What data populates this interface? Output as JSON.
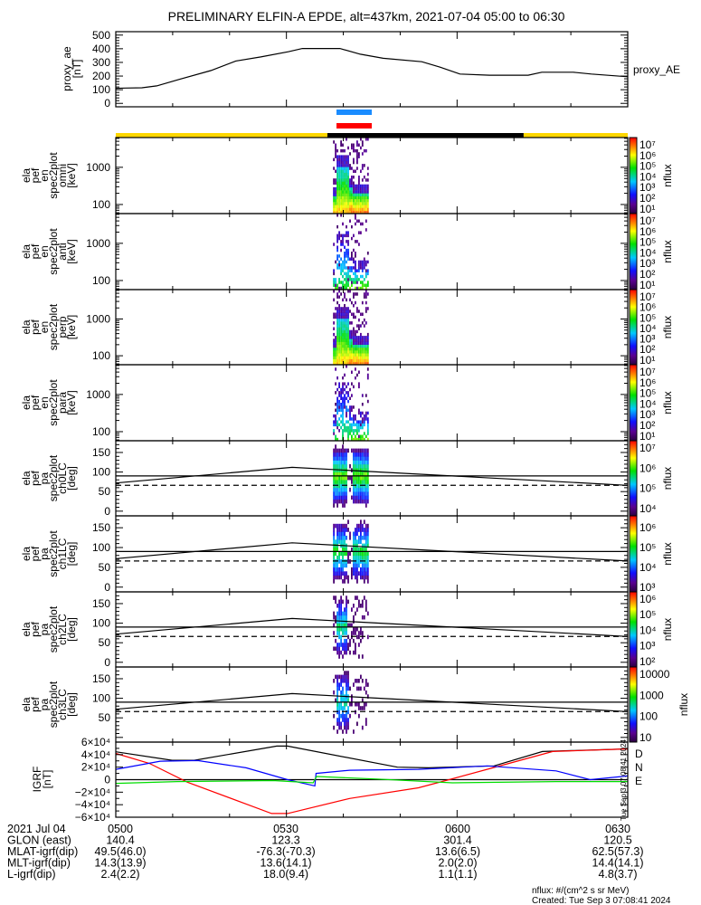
{
  "title": "PRELIMINARY ELFIN-A EPDE, alt=437km, 2021-07-04 05:00 to 06:30",
  "colors": {
    "axis": "#000000",
    "blue_bar": "#1a8cff",
    "red_bar": "#ff0000",
    "sunlight": "#ffd700",
    "shadow": "#000000",
    "D": "#ff0000",
    "N": "#0000ff",
    "E": "#00dd00",
    "total": "#000000"
  },
  "time_axis": {
    "xlim_minutes_after_0500": [
      0,
      90
    ],
    "major_every_min": 30,
    "minor_every_min": 10
  },
  "status_bars": {
    "blue_interval": [
      38.8,
      45.0
    ],
    "red_interval": [
      38.8,
      45.0
    ],
    "sun_segments": [
      {
        "from": 0,
        "to": 37.2,
        "state": "sunlight"
      },
      {
        "from": 37.2,
        "to": 71.7,
        "state": "shadow"
      },
      {
        "from": 71.7,
        "to": 90,
        "state": "sunlight"
      }
    ]
  },
  "chart_data": [
    {
      "type": "line",
      "id": "proxy_ae",
      "ylabel": [
        "proxy_ae",
        "[nT]"
      ],
      "legend": "proxy_AE",
      "ylim": [
        -25,
        525
      ],
      "yticks": [
        0,
        100,
        200,
        300,
        400,
        500
      ],
      "ytick_labels": [
        "0",
        "100",
        "200",
        "300",
        "400",
        "500"
      ],
      "x": [
        0,
        1.6,
        4.6,
        7.2,
        11.1,
        16.7,
        21.1,
        25.5,
        30.3,
        32.8,
        39.4,
        43,
        47,
        53.8,
        57,
        60.5,
        65.7,
        72.5,
        74.9,
        80.4,
        83.6,
        90
      ],
      "y": [
        110,
        112,
        114,
        128,
        175,
        240,
        310,
        340,
        378,
        402,
        402,
        360,
        330,
        305,
        265,
        215,
        206,
        206,
        228,
        228,
        215,
        195
      ]
    },
    {
      "type": "heatmap",
      "id": "omni",
      "ylabel": [
        "ela",
        "pef",
        "en",
        "spec2plot",
        "omni",
        "[keV]"
      ],
      "yscale": "log",
      "ylim": [
        57,
        6300
      ],
      "yticks": [
        100,
        1000
      ],
      "ytick_labels": [
        "100",
        "1000"
      ],
      "active_interval": [
        38.2,
        44.5
      ],
      "colorbar": {
        "label": "nflux",
        "clim_log10": [
          0.5,
          7.3
        ],
        "ticks_log10": [
          7,
          6,
          5,
          4,
          3,
          2,
          1
        ],
        "tick_labels": [
          "10⁷",
          "10⁶",
          "10⁵",
          "10⁴",
          "10³",
          "10²",
          "10¹"
        ]
      }
    },
    {
      "type": "heatmap",
      "id": "anti",
      "ylabel": [
        "ela",
        "pef",
        "en",
        "spec2plot",
        "anti",
        "[keV]"
      ],
      "yscale": "log",
      "ylim": [
        57,
        6300
      ],
      "yticks": [
        100,
        1000
      ],
      "ytick_labels": [
        "100",
        "1000"
      ],
      "active_interval": [
        38.2,
        44.5
      ],
      "colorbar": {
        "label": "nflux",
        "clim_log10": [
          0.5,
          7.3
        ],
        "ticks_log10": [
          7,
          6,
          5,
          4,
          3,
          2,
          1
        ],
        "tick_labels": [
          "10⁷",
          "10⁶",
          "10⁵",
          "10⁴",
          "10³",
          "10²",
          "10¹"
        ]
      }
    },
    {
      "type": "heatmap",
      "id": "perp",
      "ylabel": [
        "ela",
        "pef",
        "en",
        "spec2plot",
        "perp",
        "[keV]"
      ],
      "yscale": "log",
      "ylim": [
        57,
        6300
      ],
      "yticks": [
        100,
        1000
      ],
      "ytick_labels": [
        "100",
        "1000"
      ],
      "active_interval": [
        38.2,
        44.5
      ],
      "colorbar": {
        "label": "nflux",
        "clim_log10": [
          0.5,
          7.3
        ],
        "ticks_log10": [
          7,
          6,
          5,
          4,
          3,
          2,
          1
        ],
        "tick_labels": [
          "10⁷",
          "10⁶",
          "10⁵",
          "10⁴",
          "10³",
          "10²",
          "10¹"
        ]
      }
    },
    {
      "type": "heatmap",
      "id": "para",
      "ylabel": [
        "ela",
        "pef",
        "en",
        "spec2plot",
        "para",
        "[keV]"
      ],
      "yscale": "log",
      "ylim": [
        57,
        6300
      ],
      "yticks": [
        100,
        1000
      ],
      "ytick_labels": [
        "100",
        "1000"
      ],
      "active_interval": [
        38.2,
        44.5
      ],
      "colorbar": {
        "label": "nflux",
        "clim_log10": [
          0.5,
          7.3
        ],
        "ticks_log10": [
          7,
          6,
          5,
          4,
          3,
          2,
          1
        ],
        "tick_labels": [
          "10⁷",
          "10⁶",
          "10⁵",
          "10⁴",
          "10³",
          "10²",
          "10¹"
        ]
      }
    },
    {
      "type": "heatmap",
      "id": "ch0LC",
      "ylabel": [
        "ela",
        "pef",
        "pa",
        "spec2plot",
        "ch0LC",
        "[deg]"
      ],
      "yscale": "linear",
      "ylim": [
        -12,
        180
      ],
      "yticks": [
        0,
        50,
        100,
        150
      ],
      "ytick_labels": [
        "0",
        "50",
        "100",
        "150"
      ],
      "active_interval": [
        38.2,
        44.5
      ],
      "reference_lines": {
        "solid_deg": 90,
        "dashed_deg": 66,
        "loss_cone": {
          "x": [
            0,
            31,
            90
          ],
          "y": [
            72,
            112,
            66
          ]
        }
      },
      "colorbar": {
        "label": "nflux",
        "clim_log10": [
          3.6,
          7.2
        ],
        "ticks_log10": [
          7,
          6,
          5,
          4
        ],
        "tick_labels": [
          "10⁷",
          "10⁶",
          "10⁵",
          "10⁴"
        ]
      }
    },
    {
      "type": "heatmap",
      "id": "ch1LC",
      "ylabel": [
        "ela",
        "pef",
        "pa",
        "spec2plot",
        "ch1LC",
        "[deg]"
      ],
      "yscale": "linear",
      "ylim": [
        -12,
        180
      ],
      "yticks": [
        0,
        50,
        100,
        150
      ],
      "ytick_labels": [
        "0",
        "50",
        "100",
        "150"
      ],
      "active_interval": [
        38.2,
        44.5
      ],
      "reference_lines": {
        "solid_deg": 90,
        "dashed_deg": 66,
        "loss_cone": {
          "x": [
            0,
            31,
            90
          ],
          "y": [
            72,
            112,
            66
          ]
        }
      },
      "colorbar": {
        "label": "nflux",
        "clim_log10": [
          2.95,
          6.5
        ],
        "ticks_log10": [
          6,
          5,
          4,
          3
        ],
        "tick_labels": [
          "10⁶",
          "10⁵",
          "10⁴",
          "10³"
        ]
      }
    },
    {
      "type": "heatmap",
      "id": "ch2LC",
      "ylabel": [
        "ela",
        "pef",
        "pa",
        "spec2plot",
        "ch2LC",
        "[deg]"
      ],
      "yscale": "linear",
      "ylim": [
        -12,
        180
      ],
      "yticks": [
        0,
        50,
        100,
        150
      ],
      "ytick_labels": [
        "0",
        "50",
        "100",
        "150"
      ],
      "active_interval": [
        38.2,
        44.5
      ],
      "reference_lines": {
        "solid_deg": 90,
        "dashed_deg": 66,
        "loss_cone": {
          "x": [
            0,
            31,
            90
          ],
          "y": [
            72,
            112,
            66
          ]
        }
      },
      "colorbar": {
        "label": "nflux",
        "clim_log10": [
          1.6,
          6.3
        ],
        "ticks_log10": [
          6,
          5,
          4,
          3,
          2
        ],
        "tick_labels": [
          "10⁶",
          "10⁵",
          "10⁴",
          "10³",
          "10²"
        ]
      }
    },
    {
      "type": "heatmap",
      "id": "ch3LC",
      "ylabel": [
        "ela",
        "pef",
        "pa",
        "spec2plot",
        "ch3LC",
        "[deg]"
      ],
      "yscale": "linear",
      "ylim": [
        -12,
        180
      ],
      "yticks": [
        50,
        100,
        150
      ],
      "ytick_labels": [
        "50",
        "100",
        "150"
      ],
      "active_interval": [
        38.2,
        44.5
      ],
      "reference_lines": {
        "solid_deg": 90,
        "dashed_deg": 66,
        "loss_cone": {
          "x": [
            0,
            31,
            90
          ],
          "y": [
            72,
            112,
            66
          ]
        }
      },
      "colorbar": {
        "label": "nflux",
        "clim_log10": [
          0.9,
          4.2
        ],
        "ticks_log10": [
          4,
          3,
          2,
          1
        ],
        "tick_labels": [
          "10000",
          "1000",
          "100",
          "10"
        ]
      }
    },
    {
      "type": "line",
      "id": "igrf",
      "ylabel": [
        "IGRF",
        "[nT]"
      ],
      "ylim": [
        -60000,
        60000
      ],
      "yticks": [
        60000,
        40000,
        20000,
        0,
        -20000,
        -40000,
        -60000
      ],
      "ytick_labels": [
        "6×10⁴",
        "4×10⁴",
        "2×10⁴",
        "0",
        "−2×10⁴",
        "−4×10⁴",
        "−6×10⁴"
      ],
      "series": [
        {
          "name": "total",
          "color_key": "total",
          "x": [
            0,
            9.9,
            13.8,
            28.3,
            30.2,
            49.5,
            55,
            66.5,
            75,
            89.5,
            90
          ],
          "y": [
            44500,
            31000,
            31000,
            53700,
            53700,
            20000,
            19000,
            22000,
            45000,
            49000,
            49000
          ]
        },
        {
          "name": "D",
          "label": "D",
          "color_key": "D",
          "x": [
            0,
            5.9,
            12.6,
            27.4,
            30.2,
            41.1,
            53.2,
            58.6,
            67.1,
            76.8,
            89.5,
            90
          ],
          "y": [
            42000,
            26000,
            -4000,
            -54000,
            -54000,
            -30000,
            -13000,
            0,
            21000,
            45000,
            49000,
            49000
          ]
        },
        {
          "name": "N",
          "label": "N",
          "color_key": "N",
          "x": [
            0,
            7.8,
            14.4,
            22.9,
            30.2,
            35,
            35.2,
            41.1,
            53.2,
            65.3,
            77.4,
            83.4,
            90
          ],
          "y": [
            16500,
            29500,
            30500,
            19000,
            0,
            -10000,
            10000,
            15000,
            16500,
            22000,
            14000,
            0,
            6000
          ]
        },
        {
          "name": "E",
          "label": "E",
          "color_key": "E",
          "x": [
            0,
            10.8,
            27.7,
            34.7,
            35.3,
            45.9,
            59.2,
            77.4,
            90
          ],
          "y": [
            -6000,
            -3000,
            -1500,
            -5000,
            5000,
            1000,
            -5000,
            -3000,
            -3000
          ]
        }
      ]
    }
  ],
  "stamp_vertical": "Tue Sep  3 07:08:41 2024",
  "ephemeris": {
    "rows": [
      {
        "label": "2021 Jul 04",
        "values": [
          "0500",
          "0530",
          "0600",
          "0630"
        ]
      },
      {
        "label": "GLON (east)",
        "values": [
          "140.4",
          "123.3",
          "301.4",
          "120.5"
        ]
      },
      {
        "label": "MLAT-igrf(dip)",
        "values": [
          "49.5(46.0)",
          "-76.3(-70.3)",
          "13.6(6.5)",
          "62.5(57.3)"
        ]
      },
      {
        "label": "MLT-igrf(dip)",
        "values": [
          "14.3(13.9)",
          "13.6(14.1)",
          "2.0(2.0)",
          "14.4(14.1)"
        ]
      },
      {
        "label": "L-igrf(dip)",
        "values": [
          "2.4(2.2)",
          "18.0(9.4)",
          "1.1(1.1)",
          "4.8(3.7)"
        ]
      }
    ]
  },
  "footer": {
    "units": "nflux: #/(cm^2 s sr MeV)",
    "created": "Created: Tue Sep  3 07:08:41 2024"
  }
}
